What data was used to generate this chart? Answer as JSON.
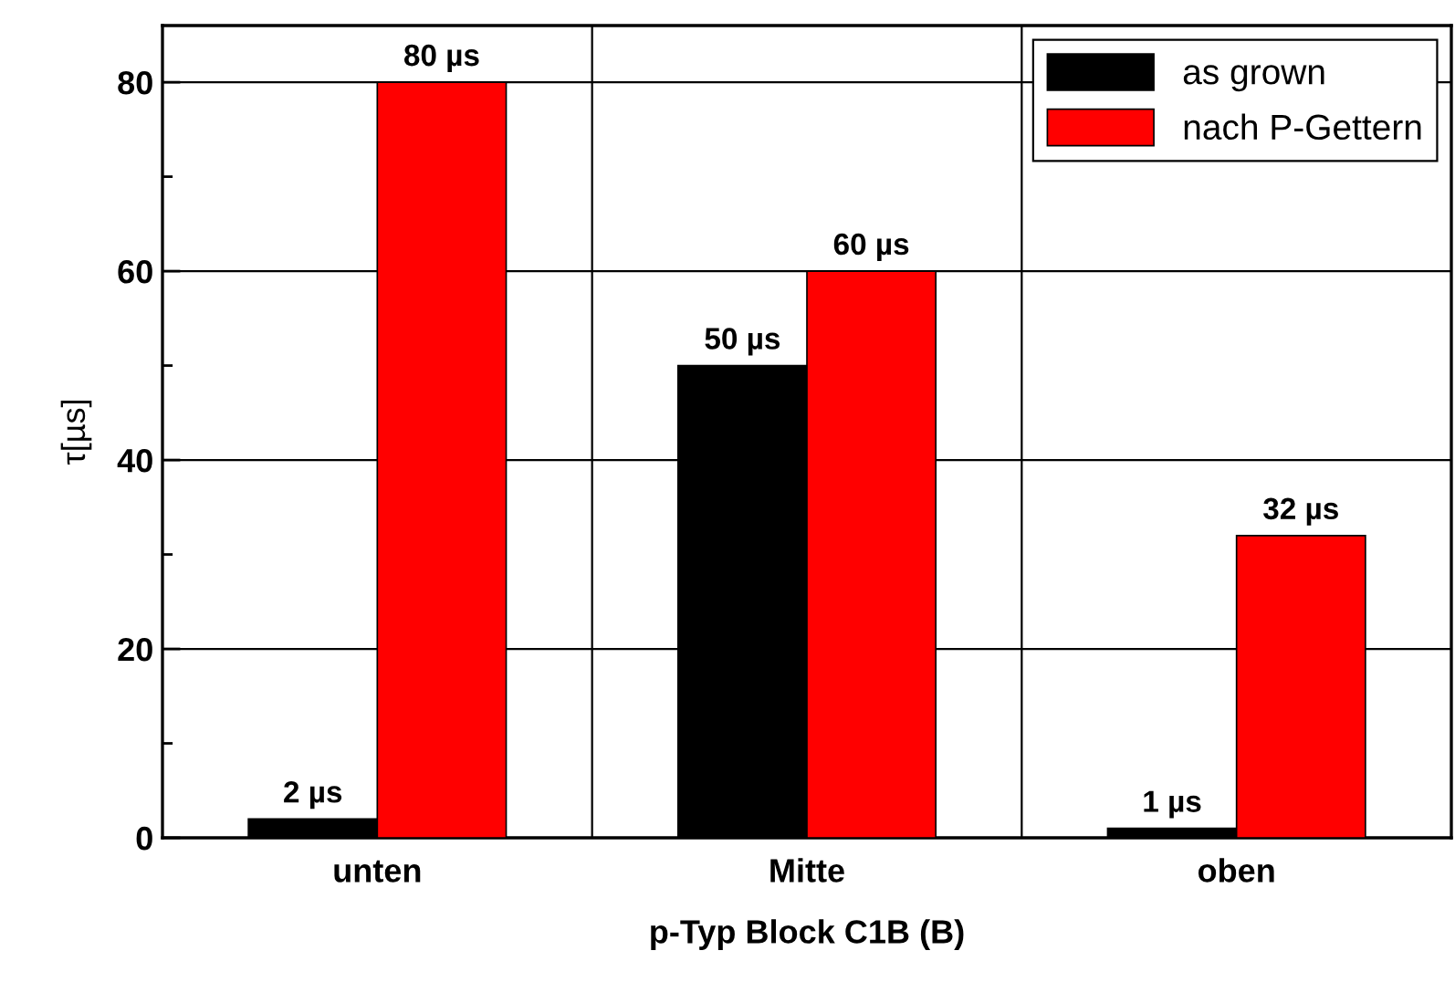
{
  "chart_data": {
    "type": "bar",
    "xlabel": "p-Typ Block C1B (B)",
    "ylabel": "τ[µs]",
    "categories": [
      "unten",
      "Mitte",
      "oben"
    ],
    "series": [
      {
        "name": "as grown",
        "color": "#000000",
        "values": [
          2,
          50,
          1
        ],
        "value_labels": [
          "2 µs",
          "50 µs",
          "1 µs"
        ]
      },
      {
        "name": "nach P-Gettern",
        "color": "#ff0000",
        "values": [
          80,
          60,
          32
        ],
        "value_labels": [
          "80 µs",
          "60 µs",
          "32 µs"
        ]
      }
    ],
    "ylim": [
      0,
      86
    ],
    "yticks": [
      0,
      20,
      40,
      60,
      80
    ],
    "grid": true,
    "legend": "top right"
  }
}
